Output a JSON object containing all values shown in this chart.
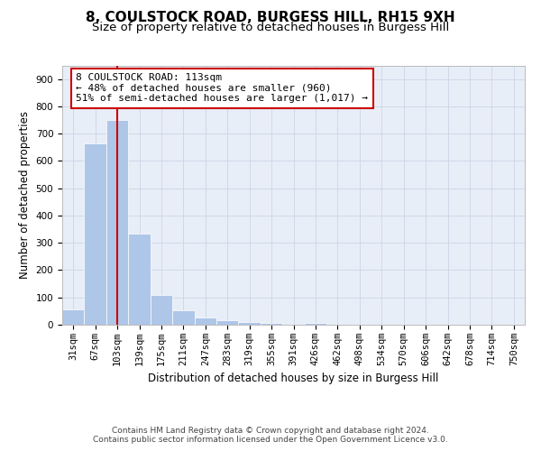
{
  "title": "8, COULSTOCK ROAD, BURGESS HILL, RH15 9XH",
  "subtitle": "Size of property relative to detached houses in Burgess Hill",
  "xlabel": "Distribution of detached houses by size in Burgess Hill",
  "ylabel": "Number of detached properties",
  "footer_line1": "Contains HM Land Registry data © Crown copyright and database right 2024.",
  "footer_line2": "Contains public sector information licensed under the Open Government Licence v3.0.",
  "bin_labels": [
    "31sqm",
    "67sqm",
    "103sqm",
    "139sqm",
    "175sqm",
    "211sqm",
    "247sqm",
    "283sqm",
    "319sqm",
    "355sqm",
    "391sqm",
    "426sqm",
    "462sqm",
    "498sqm",
    "534sqm",
    "570sqm",
    "606sqm",
    "642sqm",
    "678sqm",
    "714sqm",
    "750sqm"
  ],
  "bar_values": [
    57,
    663,
    750,
    335,
    110,
    52,
    25,
    15,
    10,
    8,
    0,
    8,
    0,
    0,
    0,
    0,
    0,
    0,
    0,
    0,
    0
  ],
  "bar_color": "#aec6e8",
  "grid_color": "#d0d8e8",
  "background_color": "#e8eef8",
  "property_line_x": 2.0,
  "property_line_color": "#cc0000",
  "annotation_box_text": "8 COULSTOCK ROAD: 113sqm\n← 48% of detached houses are smaller (960)\n51% of semi-detached houses are larger (1,017) →",
  "annotation_box_color": "#cc0000",
  "ylim": [
    0,
    950
  ],
  "yticks": [
    0,
    100,
    200,
    300,
    400,
    500,
    600,
    700,
    800,
    900
  ],
  "title_fontsize": 11,
  "subtitle_fontsize": 9.5,
  "axis_label_fontsize": 8.5,
  "tick_fontsize": 7.5,
  "annotation_fontsize": 8,
  "footer_fontsize": 6.5
}
